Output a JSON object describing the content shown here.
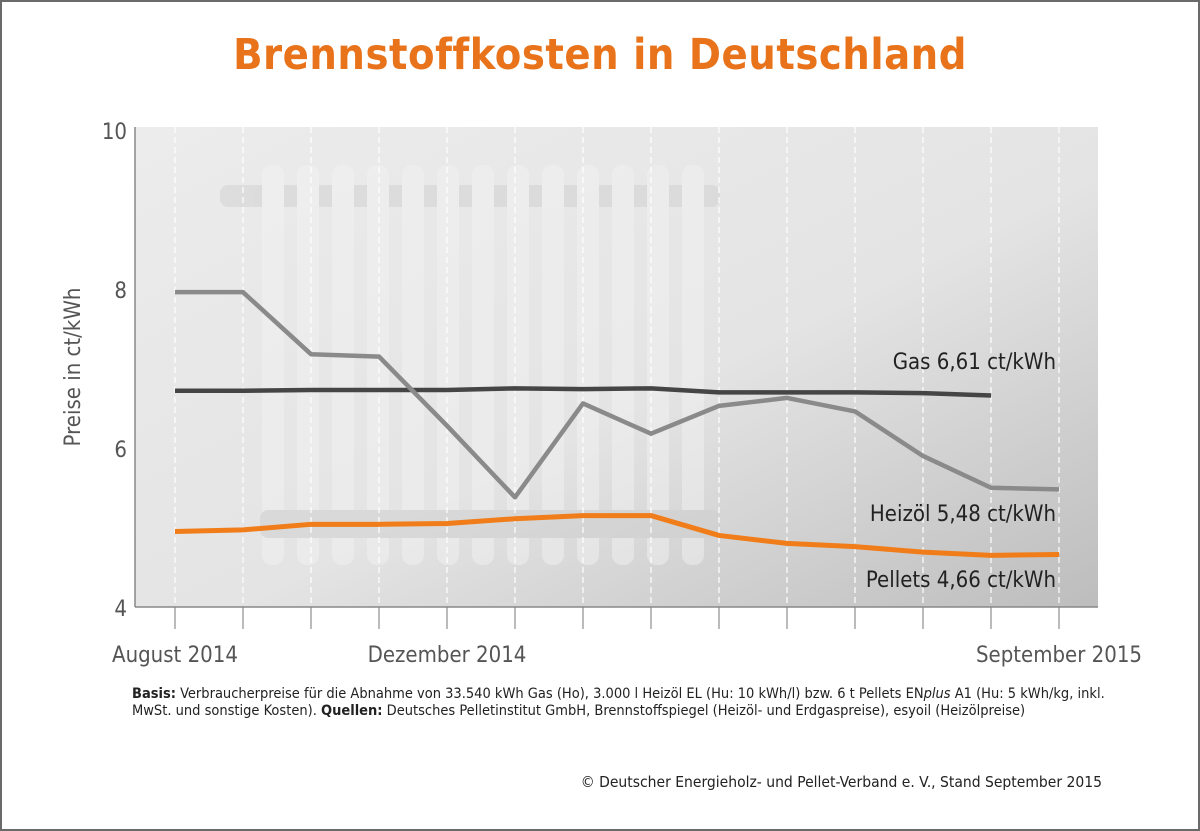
{
  "title": "Brennstoffkosten in Deutschland",
  "footnote": {
    "basis_label": "Basis:",
    "basis_text_1": " Verbraucherpreise für die Abnahme von 33.540 kWh Gas (Ho), 3.000 l Heizöl EL (Hu: 10 kWh/l) bzw. 6 t Pellets EN",
    "basis_italic": "plus",
    "basis_text_2": " A1 (Hu: 5 kWh/kg, inkl. MwSt. und sonstige Kosten). ",
    "sources_label": "Quellen:",
    "sources_text": " Deutsches Pelletinstitut GmbH, Brennstoffspiegel (Heizöl- und Erdgaspreise), esyoil (Heizölpreise)"
  },
  "copyright": "© Deutscher Energieholz- und Pellet-Verband e. V., Stand September 2015",
  "chart_data": {
    "type": "line",
    "title": "Brennstoffkosten in Deutschland",
    "ylabel": "Preise in ct/kWh",
    "xlabel": "",
    "ylim": [
      4,
      10
    ],
    "yticks": [
      4,
      6,
      8,
      10
    ],
    "x": [
      "2014-08",
      "2014-09",
      "2014-10",
      "2014-11",
      "2014-12",
      "2015-01",
      "2015-02",
      "2015-03",
      "2015-04",
      "2015-05",
      "2015-06",
      "2015-07",
      "2015-08",
      "2015-09"
    ],
    "xtick_labels": [
      {
        "index": 0,
        "label": "August 2014"
      },
      {
        "index": 4,
        "label": "Dezember 2014"
      },
      {
        "index": 13,
        "label": "September 2015"
      }
    ],
    "grid": "vertical dashed",
    "series": [
      {
        "name": "Gas",
        "label": "Gas 6,61 ct/kWh",
        "color": "#454545",
        "values": [
          6.72,
          6.72,
          6.73,
          6.73,
          6.73,
          6.75,
          6.74,
          6.75,
          6.7,
          6.7,
          6.7,
          6.69,
          6.66,
          null
        ]
      },
      {
        "name": "Heizöl",
        "label": "Heizöl 5,48 ct/kWh",
        "color": "#8a8a8a",
        "values": [
          7.96,
          7.96,
          7.18,
          7.15,
          6.28,
          5.38,
          6.56,
          6.18,
          6.53,
          6.63,
          6.46,
          5.9,
          5.5,
          5.48
        ]
      },
      {
        "name": "Pellets",
        "label": "Pellets 4,66 ct/kWh",
        "color": "#f07d1a",
        "values": [
          4.95,
          4.97,
          5.04,
          5.04,
          5.05,
          5.11,
          5.15,
          5.15,
          4.9,
          4.8,
          4.76,
          4.69,
          4.65,
          4.66
        ]
      }
    ]
  }
}
